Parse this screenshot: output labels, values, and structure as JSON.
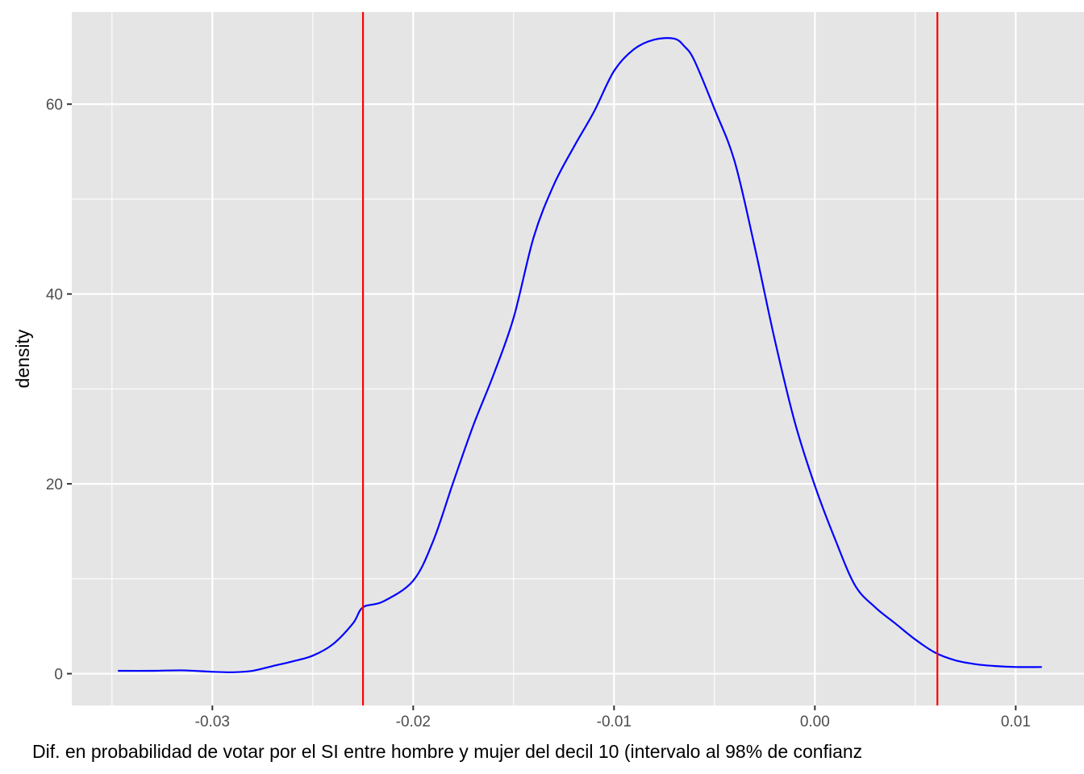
{
  "chart_data": {
    "type": "line",
    "title": "",
    "xlabel": "Dif. en probabilidad de votar por el SI entre hombre y mujer del decil 10 (intervalo al 98% de confianz",
    "ylabel": "density",
    "xlim": [
      -0.037,
      0.0134
    ],
    "ylim": [
      -3.35,
      69.7
    ],
    "x_ticks": [
      -0.03,
      -0.02,
      -0.01,
      0.0,
      0.01
    ],
    "x_tick_labels": [
      "-0.03",
      "-0.02",
      "-0.01",
      "0.00",
      "0.01"
    ],
    "x_minor_ticks": [
      -0.035,
      -0.025,
      -0.015,
      -0.005,
      0.005
    ],
    "y_ticks": [
      0,
      20,
      40,
      60
    ],
    "y_tick_labels": [
      "0",
      "20",
      "40",
      "60"
    ],
    "y_minor_ticks": [
      10,
      30,
      50
    ],
    "grid": true,
    "panel_background": "#e5e5e5",
    "grid_color": "#ffffff",
    "series": [
      {
        "color": "#0000ff",
        "x": [
          -0.0347,
          -0.033,
          -0.0315,
          -0.03,
          -0.029,
          -0.028,
          -0.027,
          -0.026,
          -0.025,
          -0.024,
          -0.023,
          -0.0225,
          -0.0215,
          -0.02,
          -0.019,
          -0.018,
          -0.017,
          -0.016,
          -0.015,
          -0.014,
          -0.013,
          -0.012,
          -0.011,
          -0.01,
          -0.009,
          -0.008,
          -0.007,
          -0.0065,
          -0.006,
          -0.005,
          -0.004,
          -0.003,
          -0.002,
          -0.001,
          0.0,
          0.001,
          0.002,
          0.003,
          0.004,
          0.005,
          0.006,
          0.007,
          0.008,
          0.009,
          0.01,
          0.0113
        ],
        "y": [
          0.3,
          0.3,
          0.35,
          0.2,
          0.15,
          0.3,
          0.8,
          1.3,
          1.9,
          3.1,
          5.3,
          7.0,
          7.6,
          9.8,
          14.0,
          20.2,
          26.2,
          31.5,
          37.5,
          46.0,
          51.5,
          55.5,
          59.2,
          63.5,
          65.8,
          66.8,
          66.9,
          66.1,
          64.6,
          59.5,
          54.0,
          45.0,
          35.2,
          26.5,
          19.8,
          14.2,
          9.3,
          7.0,
          5.3,
          3.6,
          2.2,
          1.4,
          1.0,
          0.8,
          0.7,
          0.7
        ]
      }
    ],
    "vlines": [
      {
        "x": -0.0225,
        "color": "#ff0000"
      },
      {
        "x": 0.0061,
        "color": "#ff0000"
      }
    ]
  }
}
